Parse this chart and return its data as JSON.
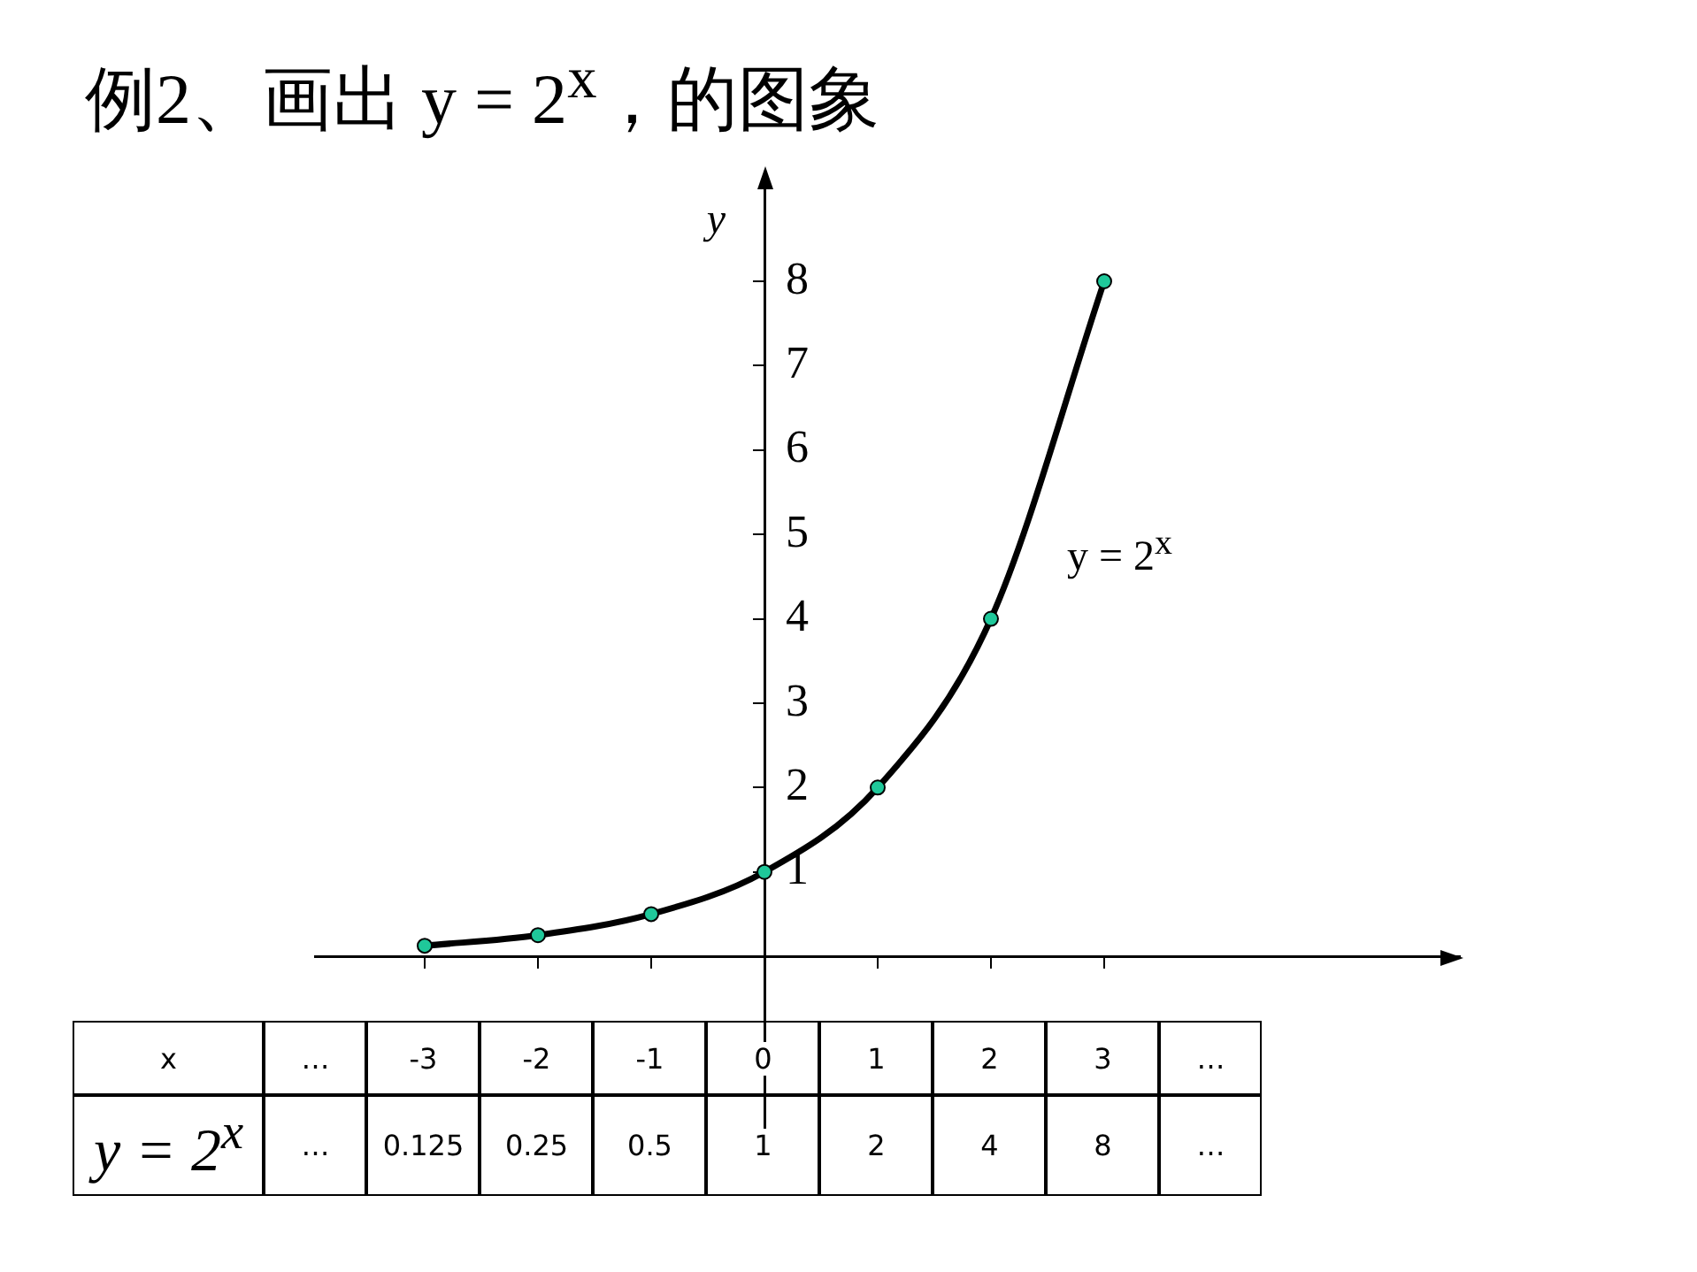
{
  "chart_data": {
    "type": "line",
    "title": "例2、画出 y = 2$^{x}$，的图象",
    "ylabel": "y",
    "categories": [
      "-3",
      "-2",
      "-1",
      "0",
      "1",
      "2",
      "3"
    ],
    "ylim": [
      -2.4,
      9.3
    ],
    "yticks": [
      1,
      2,
      3,
      4,
      5,
      6,
      7,
      8
    ],
    "grid": false,
    "legend": false,
    "series": [
      {
        "type": "line",
        "color": "#000000",
        "marker": "none",
        "line_style": "solid",
        "values": [
          0.125,
          0.25,
          0.5,
          1,
          2,
          4,
          8
        ]
      },
      {
        "type": "scatter",
        "color": "#1fc89a",
        "marker": "circle",
        "values": [
          0.125,
          0.25,
          0.5,
          1,
          2,
          4,
          8
        ]
      }
    ],
    "annotations": [
      "y = 2$^{x}$",
      "x",
      "y = 2$^{x}$",
      "…",
      "0.125",
      "0.25",
      "0.5",
      "1",
      "2",
      "4",
      "8"
    ]
  }
}
